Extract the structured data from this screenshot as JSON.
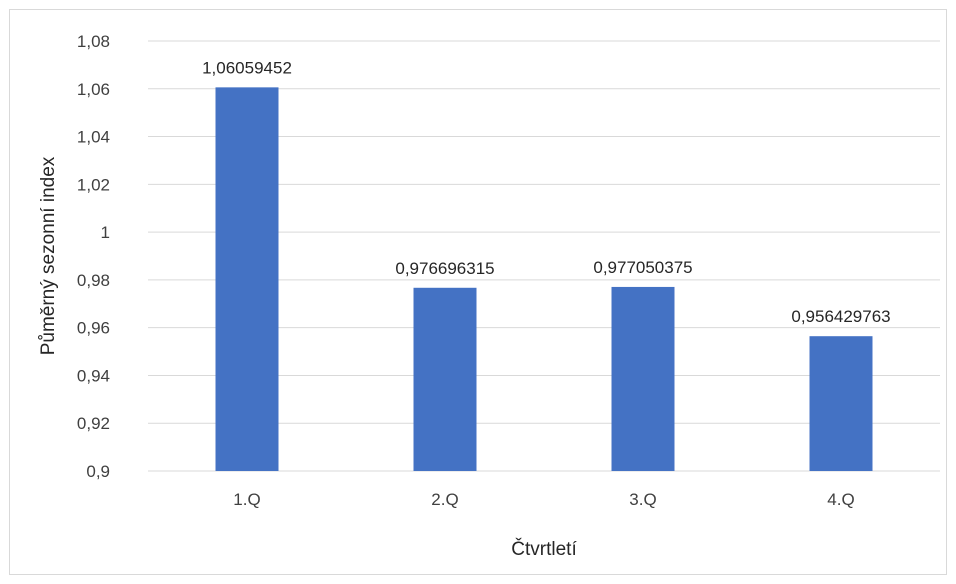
{
  "chart_data": {
    "type": "bar",
    "categories": [
      "1.Q",
      "2.Q",
      "3.Q",
      "4.Q"
    ],
    "values": [
      1.06059452,
      0.976696315,
      0.977050375,
      0.956429763
    ],
    "data_labels": [
      "1,06059452",
      "0,976696315",
      "0,977050375",
      "0,956429763"
    ],
    "xlabel": "Čtvrtletí",
    "ylabel": "Půměrný sezonní index",
    "ylim": [
      0.9,
      1.08
    ],
    "yticks": [
      0.9,
      0.92,
      0.94,
      0.96,
      0.98,
      1,
      1.02,
      1.04,
      1.06,
      1.08
    ],
    "ytick_labels": [
      "0,9",
      "0,92",
      "0,94",
      "0,96",
      "0,98",
      "1",
      "1,02",
      "1,04",
      "1,06",
      "1,08"
    ],
    "grid": true,
    "legend": "none",
    "bar_color": "#4472c4",
    "grid_color": "#d9d9d9"
  }
}
